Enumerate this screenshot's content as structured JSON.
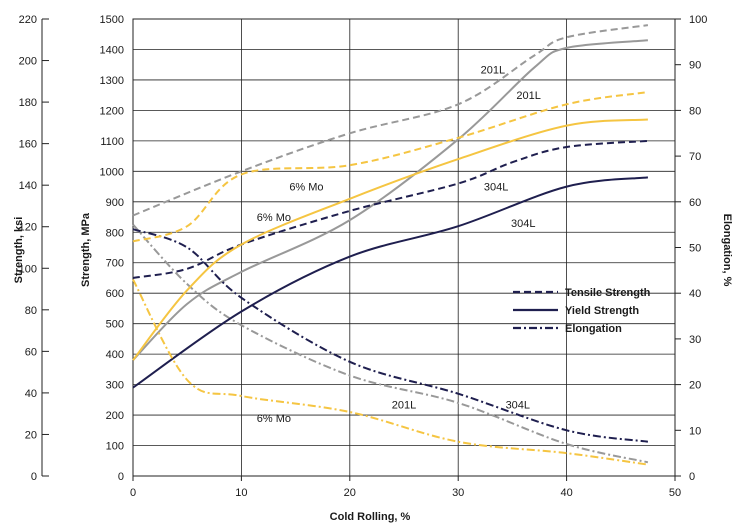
{
  "chart_data": {
    "type": "line",
    "xlabel": "Cold Rolling, %",
    "ylabel_left_outer": "Strength, ksi",
    "ylabel_left_inner": "Strength, MPa",
    "ylabel_right": "Elongation, %",
    "xlim": [
      0,
      50
    ],
    "ylim_mpa": [
      0,
      1500
    ],
    "ylim_ksi": [
      0,
      220
    ],
    "ylim_elongation": [
      0,
      100
    ],
    "x_ticks": [
      "0",
      "10",
      "20",
      "30",
      "40",
      "50"
    ],
    "mpa_ticks": [
      "0",
      "100",
      "200",
      "300",
      "400",
      "500",
      "600",
      "700",
      "800",
      "900",
      "1000",
      "1100",
      "1200",
      "1300",
      "1400",
      "1500"
    ],
    "ksi_ticks": [
      "0",
      "20",
      "40",
      "60",
      "80",
      "100",
      "120",
      "140",
      "160",
      "180",
      "200",
      "220"
    ],
    "elongation_ticks": [
      "0",
      "10",
      "20",
      "30",
      "40",
      "50",
      "60",
      "70",
      "80",
      "90",
      "100"
    ],
    "grid": true,
    "legend_position": "center-right",
    "legend": [
      {
        "label": "Tensile Strength",
        "style": "dashed"
      },
      {
        "label": "Yield Strength",
        "style": "solid"
      },
      {
        "label": "Elongation",
        "style": "dashdot"
      }
    ],
    "colors": {
      "201L": "#999999",
      "304L": "#1f1f4f",
      "6% Mo": "#f5c542"
    },
    "series": [
      {
        "name": "201L",
        "kind": "Tensile Strength",
        "axis": "mpa",
        "x": [
          0,
          10,
          20,
          30,
          37,
          40,
          47.5
        ],
        "values": [
          855,
          1000,
          1125,
          1220,
          1380,
          1440,
          1480
        ]
      },
      {
        "name": "201L",
        "kind": "Yield Strength",
        "axis": "mpa",
        "x": [
          0,
          5,
          10,
          20,
          30,
          37,
          40,
          47.5
        ],
        "values": [
          380,
          565,
          670,
          840,
          1105,
          1340,
          1405,
          1430
        ]
      },
      {
        "name": "201L",
        "kind": "Elongation",
        "axis": "elongation",
        "x": [
          0,
          5,
          10,
          20,
          30,
          40,
          47.5
        ],
        "values": [
          55,
          42,
          33,
          22,
          16,
          7,
          3
        ]
      },
      {
        "name": "304L",
        "kind": "Tensile Strength",
        "axis": "mpa",
        "x": [
          0,
          5,
          10,
          20,
          30,
          35,
          40,
          47.5
        ],
        "values": [
          650,
          680,
          760,
          870,
          960,
          1030,
          1080,
          1100
        ]
      },
      {
        "name": "304L",
        "kind": "Yield Strength",
        "axis": "mpa",
        "x": [
          0,
          10,
          20,
          30,
          40,
          47.5
        ],
        "values": [
          290,
          540,
          720,
          820,
          950,
          980
        ]
      },
      {
        "name": "304L",
        "kind": "Elongation",
        "axis": "elongation",
        "x": [
          0,
          5,
          10,
          20,
          30,
          40,
          47.5
        ],
        "values": [
          54,
          50,
          39,
          25,
          18,
          10,
          7.5
        ]
      },
      {
        "name": "6% Mo",
        "kind": "Tensile Strength",
        "axis": "mpa",
        "x": [
          0,
          5,
          10,
          20,
          30,
          40,
          47.5
        ],
        "values": [
          770,
          820,
          990,
          1020,
          1110,
          1220,
          1260
        ]
      },
      {
        "name": "6% Mo",
        "kind": "Yield Strength",
        "axis": "mpa",
        "x": [
          0,
          5,
          10,
          20,
          30,
          40,
          47.5
        ],
        "values": [
          380,
          610,
          760,
          910,
          1040,
          1150,
          1170
        ]
      },
      {
        "name": "6% Mo",
        "kind": "Elongation",
        "axis": "elongation",
        "x": [
          0,
          5,
          10,
          20,
          30,
          40,
          47.5
        ],
        "values": [
          43,
          21,
          17.5,
          14,
          7.5,
          5,
          2.5
        ]
      }
    ],
    "annotations": [
      {
        "text": "201L",
        "x": 33.2,
        "y_mpa": 1335
      },
      {
        "text": "201L",
        "x": 36.5,
        "y_mpa": 1250
      },
      {
        "text": "6% Mo",
        "x": 16,
        "y_mpa": 950
      },
      {
        "text": "6% Mo",
        "x": 13,
        "y_mpa": 850
      },
      {
        "text": "304L",
        "x": 33.5,
        "y_mpa": 950
      },
      {
        "text": "304L",
        "x": 36,
        "y_mpa": 830
      },
      {
        "text": "201L",
        "x": 25,
        "y_mpa": 235
      },
      {
        "text": "304L",
        "x": 35.5,
        "y_mpa": 235
      },
      {
        "text": "6% Mo",
        "x": 13,
        "y_mpa": 190
      }
    ]
  }
}
